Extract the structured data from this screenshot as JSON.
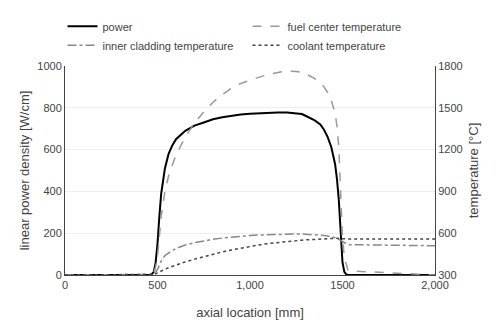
{
  "chart_data": {
    "type": "line",
    "xlabel": "axial location [mm]",
    "ylabel": "linear power density [W/cm]",
    "y2label": "temperature [°C]",
    "xlim": [
      0,
      2000
    ],
    "ylim": [
      0,
      1000
    ],
    "y2lim": [
      300,
      1800
    ],
    "xticks": [
      0,
      500,
      {
        "value": 1000,
        "label": "1,000"
      },
      1500,
      {
        "value": 2000,
        "label": "2,000"
      }
    ],
    "yticks": [
      0,
      200,
      400,
      600,
      800,
      1000
    ],
    "y2ticks": [
      300,
      600,
      900,
      1200,
      1500,
      1800
    ],
    "grid": "y",
    "legend": "top",
    "x": [
      0,
      460,
      470,
      480,
      490,
      500,
      510,
      520,
      540,
      560,
      580,
      600,
      650,
      700,
      750,
      800,
      850,
      900,
      950,
      1000,
      1050,
      1100,
      1150,
      1200,
      1250,
      1280,
      1300,
      1350,
      1380,
      1400,
      1420,
      1440,
      1460,
      1470,
      1480,
      1490,
      1500,
      1510,
      1520,
      1530,
      2000
    ],
    "series": [
      {
        "name": "power",
        "color": "#000000",
        "line_style": "solid",
        "axis": "y",
        "values": [
          0,
          0,
          5,
          15,
          60,
          150,
          280,
          390,
          510,
          580,
          620,
          650,
          690,
          715,
          730,
          745,
          755,
          762,
          768,
          772,
          775,
          777,
          778,
          778,
          775,
          770,
          762,
          740,
          720,
          695,
          660,
          610,
          530,
          460,
          360,
          200,
          60,
          15,
          3,
          0,
          0
        ]
      },
      {
        "name": "fuel center temperature",
        "color": "#999999",
        "line_style": "dashed",
        "axis": "y2",
        "values": [
          300,
          300,
          305,
          315,
          360,
          430,
          580,
          720,
          900,
          1010,
          1090,
          1160,
          1290,
          1390,
          1470,
          1540,
          1595,
          1640,
          1675,
          1700,
          1720,
          1740,
          1755,
          1765,
          1760,
          1755,
          1745,
          1710,
          1680,
          1650,
          1610,
          1550,
          1460,
          1370,
          1220,
          900,
          560,
          430,
          370,
          330,
          300
        ]
      },
      {
        "name": "inner cladding temperature",
        "color": "#888888",
        "line_style": "dashdot",
        "axis": "y2",
        "values": [
          300,
          300,
          302,
          308,
          320,
          340,
          370,
          400,
          440,
          460,
          475,
          490,
          515,
          532,
          545,
          556,
          565,
          572,
          578,
          583,
          587,
          590,
          592,
          594,
          594,
          594,
          593,
          590,
          587,
          584,
          580,
          575,
          568,
          562,
          555,
          545,
          535,
          528,
          522,
          518,
          510
        ]
      },
      {
        "name": "coolant temperature",
        "color": "#444444",
        "line_style": "dotted",
        "axis": "y2",
        "values": [
          300,
          300,
          301,
          304,
          308,
          315,
          322,
          330,
          342,
          352,
          362,
          372,
          394,
          414,
          432,
          450,
          466,
          480,
          493,
          505,
          516,
          526,
          534,
          541,
          547,
          550,
          552,
          557,
          559,
          561,
          562,
          563,
          563,
          563,
          562,
          561,
          560,
          559,
          558,
          558,
          558
        ]
      }
    ]
  }
}
